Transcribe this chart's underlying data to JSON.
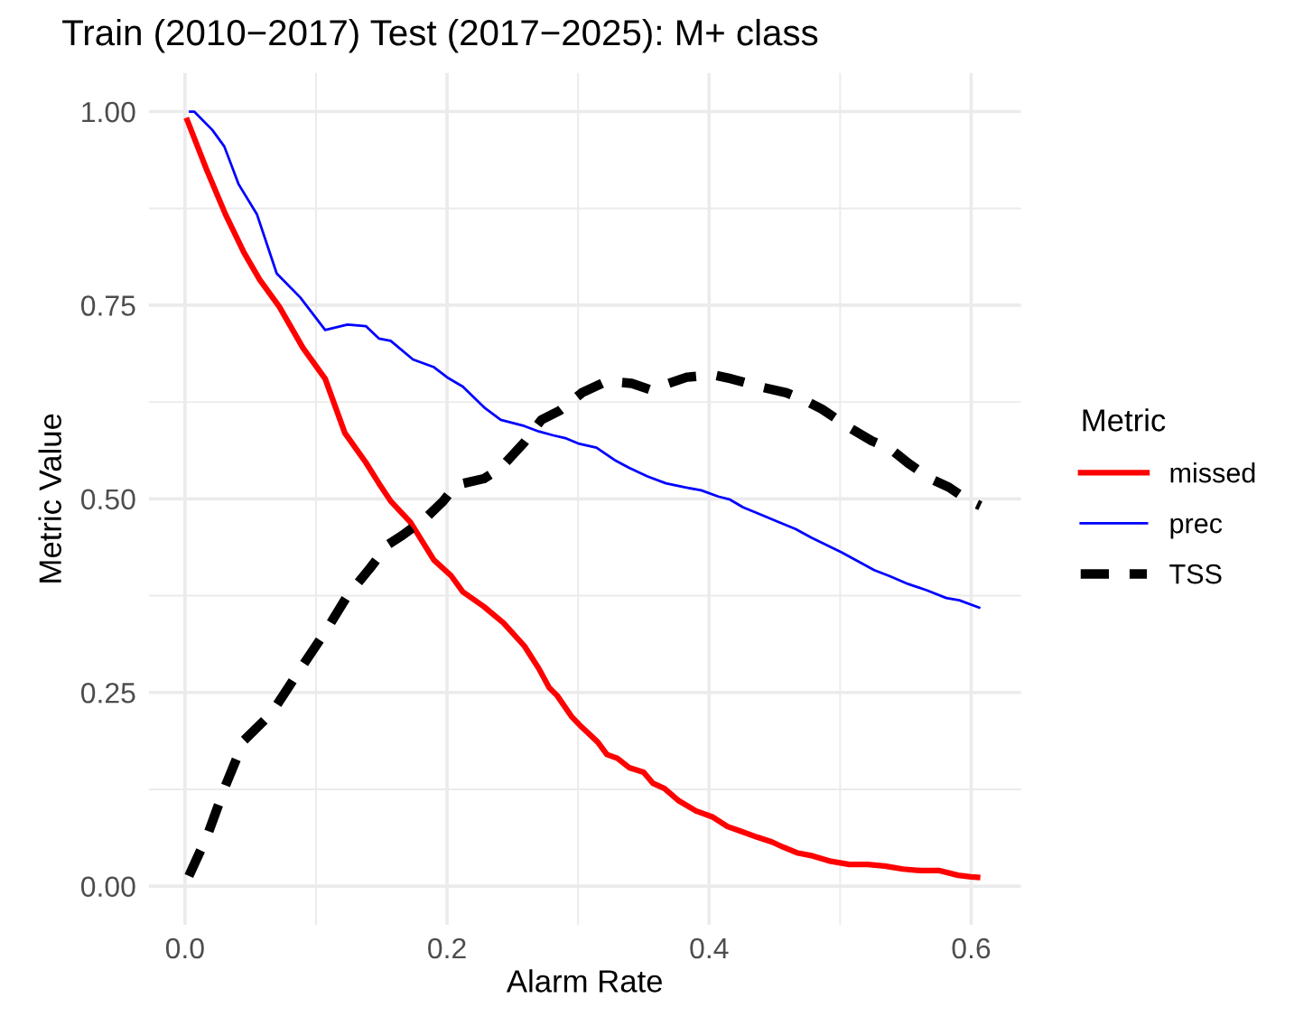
{
  "chart_data": {
    "type": "line",
    "title": "Train (2010−2017) Test (2017−2025): M+ class",
    "xlabel": "Alarm Rate",
    "ylabel": "Metric Value",
    "legend_title": "Metric",
    "legend": "right",
    "grid": true,
    "xlim": [
      -0.0276,
      0.638
    ],
    "ylim": [
      -0.05,
      1.05
    ],
    "xticks": [
      {
        "value": 0.0,
        "label": "0.0"
      },
      {
        "value": 0.1,
        "label": null
      },
      {
        "value": 0.2,
        "label": "0.2"
      },
      {
        "value": 0.3,
        "label": null
      },
      {
        "value": 0.4,
        "label": "0.4"
      },
      {
        "value": 0.5,
        "label": null
      },
      {
        "value": 0.6,
        "label": "0.6"
      }
    ],
    "yticks": [
      {
        "value": 0.0,
        "label": "0.00"
      },
      {
        "value": 0.125,
        "label": null
      },
      {
        "value": 0.25,
        "label": "0.25"
      },
      {
        "value": 0.375,
        "label": null
      },
      {
        "value": 0.5,
        "label": "0.50"
      },
      {
        "value": 0.625,
        "label": null
      },
      {
        "value": 0.75,
        "label": "0.75"
      },
      {
        "value": 0.875,
        "label": null
      },
      {
        "value": 1.0,
        "label": "1.00"
      }
    ],
    "series": [
      {
        "name": "missed",
        "color": "#ff0000",
        "line_style": "solid",
        "x": [
          0.001,
          0.017,
          0.031,
          0.045,
          0.057,
          0.072,
          0.09,
          0.107,
          0.122,
          0.138,
          0.148,
          0.157,
          0.172,
          0.19,
          0.203,
          0.212,
          0.228,
          0.243,
          0.259,
          0.27,
          0.278,
          0.284,
          0.295,
          0.303,
          0.315,
          0.322,
          0.33,
          0.339,
          0.35,
          0.357,
          0.366,
          0.377,
          0.39,
          0.403,
          0.414,
          0.424,
          0.437,
          0.448,
          0.457,
          0.467,
          0.479,
          0.493,
          0.507,
          0.521,
          0.534,
          0.548,
          0.562,
          0.576,
          0.59,
          0.6,
          0.607
        ],
        "values": [
          0.992,
          0.923,
          0.867,
          0.818,
          0.783,
          0.748,
          0.695,
          0.655,
          0.585,
          0.547,
          0.52,
          0.497,
          0.47,
          0.421,
          0.401,
          0.38,
          0.361,
          0.34,
          0.31,
          0.281,
          0.256,
          0.246,
          0.219,
          0.205,
          0.186,
          0.17,
          0.165,
          0.153,
          0.147,
          0.133,
          0.126,
          0.11,
          0.097,
          0.089,
          0.077,
          0.071,
          0.063,
          0.057,
          0.05,
          0.043,
          0.039,
          0.032,
          0.028,
          0.028,
          0.026,
          0.022,
          0.02,
          0.02,
          0.014,
          0.012,
          0.011
        ]
      },
      {
        "name": "prec",
        "color": "#0000ff",
        "line_style": "solid",
        "x": [
          0.003,
          0.007,
          0.021,
          0.03,
          0.041,
          0.055,
          0.07,
          0.088,
          0.107,
          0.124,
          0.138,
          0.148,
          0.157,
          0.174,
          0.19,
          0.2,
          0.212,
          0.229,
          0.241,
          0.259,
          0.27,
          0.281,
          0.291,
          0.301,
          0.314,
          0.328,
          0.339,
          0.353,
          0.367,
          0.381,
          0.394,
          0.407,
          0.416,
          0.426,
          0.439,
          0.453,
          0.466,
          0.478,
          0.49,
          0.501,
          0.514,
          0.526,
          0.538,
          0.552,
          0.566,
          0.581,
          0.591,
          0.607
        ],
        "values": [
          1.0,
          1.0,
          0.976,
          0.955,
          0.906,
          0.867,
          0.791,
          0.76,
          0.718,
          0.725,
          0.723,
          0.707,
          0.704,
          0.68,
          0.67,
          0.657,
          0.645,
          0.617,
          0.602,
          0.594,
          0.587,
          0.582,
          0.578,
          0.571,
          0.566,
          0.55,
          0.54,
          0.529,
          0.52,
          0.515,
          0.511,
          0.503,
          0.499,
          0.489,
          0.48,
          0.47,
          0.461,
          0.45,
          0.44,
          0.431,
          0.419,
          0.408,
          0.4,
          0.39,
          0.382,
          0.372,
          0.369,
          0.359
        ]
      },
      {
        "name": "TSS",
        "color": "#000000",
        "line_style": "dashed",
        "x": [
          0.003,
          0.017,
          0.031,
          0.045,
          0.066,
          0.086,
          0.107,
          0.124,
          0.141,
          0.155,
          0.166,
          0.183,
          0.197,
          0.207,
          0.228,
          0.241,
          0.259,
          0.272,
          0.286,
          0.303,
          0.322,
          0.341,
          0.355,
          0.383,
          0.403,
          0.417,
          0.438,
          0.459,
          0.472,
          0.486,
          0.507,
          0.524,
          0.538,
          0.552,
          0.569,
          0.583,
          0.597,
          0.607
        ],
        "values": [
          0.013,
          0.065,
          0.13,
          0.188,
          0.223,
          0.275,
          0.328,
          0.375,
          0.41,
          0.441,
          0.453,
          0.474,
          0.497,
          0.518,
          0.526,
          0.54,
          0.573,
          0.602,
          0.614,
          0.637,
          0.652,
          0.649,
          0.641,
          0.657,
          0.66,
          0.655,
          0.645,
          0.637,
          0.628,
          0.616,
          0.592,
          0.575,
          0.565,
          0.546,
          0.526,
          0.515,
          0.499,
          0.491
        ]
      }
    ]
  }
}
